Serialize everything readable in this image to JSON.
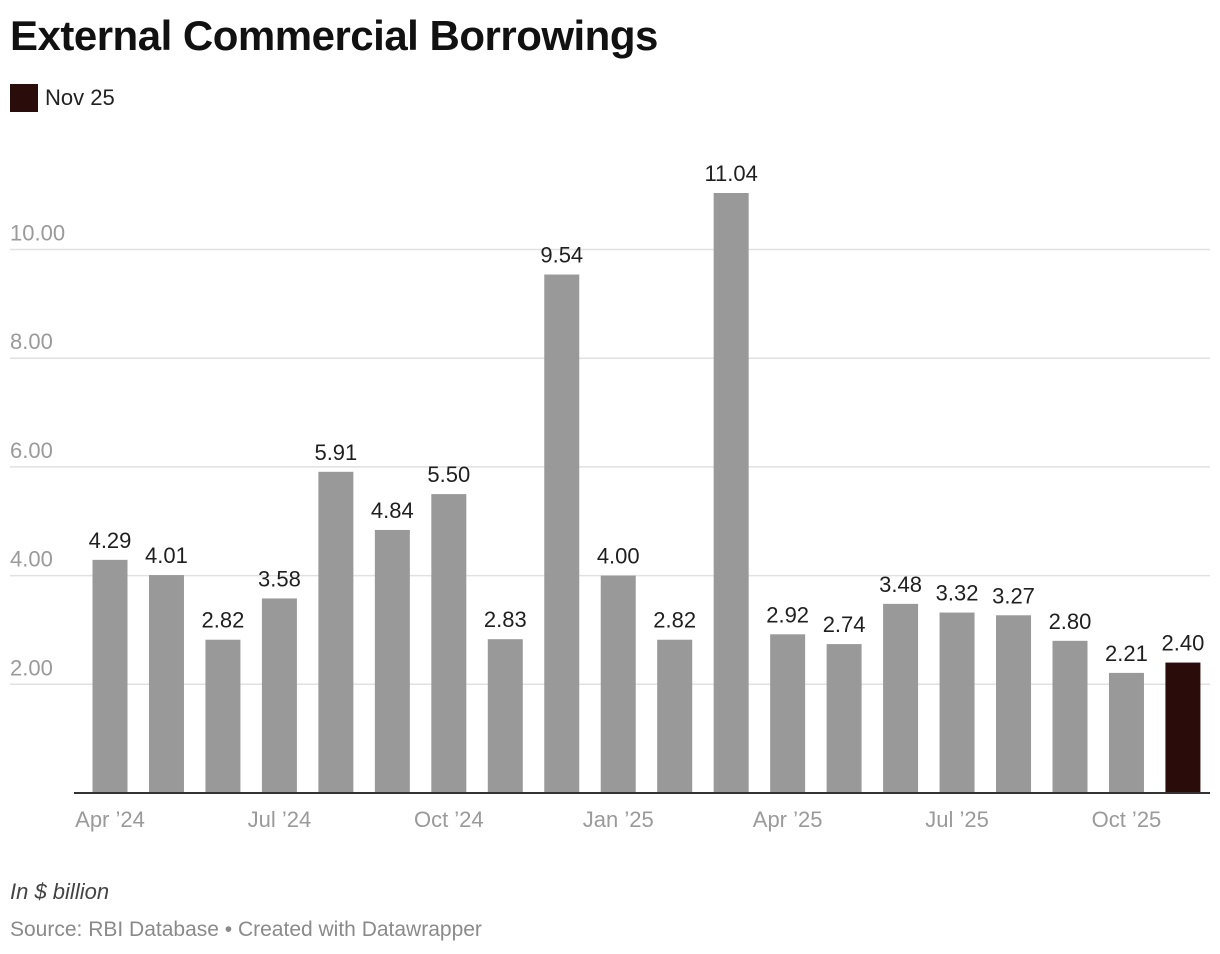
{
  "colors": {
    "bar": "#999999",
    "highlight": "#2a0d0a",
    "grid": "#e1e1e1",
    "tick_text": "#9a9a9a",
    "axis": "#333333",
    "label_text": "#1f1f1f"
  },
  "chart_data": {
    "type": "bar",
    "title": "External Commercial Borrowings",
    "legend": [
      {
        "name": "Nov 25",
        "color": "#2a0d0a"
      }
    ],
    "categories": [
      "Apr 2024",
      "May 2024",
      "Jun 2024",
      "Jul 2024",
      "Aug 2024",
      "Sep 2024",
      "Oct 2024",
      "Nov 2024",
      "Dec 2024",
      "Jan 2025",
      "Feb 2025",
      "Mar 2025",
      "Apr 2025",
      "May 2025",
      "Jun 2025",
      "Jul 2025",
      "Aug 2025",
      "Sep 2025",
      "Oct 2025",
      "Nov 2025"
    ],
    "values": [
      4.29,
      4.01,
      2.82,
      3.58,
      5.91,
      4.84,
      5.5,
      2.83,
      9.54,
      4.0,
      2.82,
      11.04,
      2.92,
      2.74,
      3.48,
      3.32,
      3.27,
      2.8,
      2.21,
      2.4
    ],
    "value_labels": [
      "4.29",
      "4.01",
      "2.82",
      "3.58",
      "5.91",
      "4.84",
      "5.50",
      "2.83",
      "9.54",
      "4.00",
      "2.82",
      "11.04",
      "2.92",
      "2.74",
      "3.48",
      "3.32",
      "3.27",
      "2.80",
      "2.21",
      "2.40"
    ],
    "highlight_index": 19,
    "y_ticks": [
      2,
      4,
      6,
      8,
      10
    ],
    "y_tick_labels": [
      "2.00",
      "4.00",
      "6.00",
      "8.00",
      "10.00"
    ],
    "x_tick_labels": [
      {
        "index": 0,
        "label": "Apr ’24"
      },
      {
        "index": 3,
        "label": "Jul ’24"
      },
      {
        "index": 6,
        "label": "Oct ’24"
      },
      {
        "index": 9,
        "label": "Jan ’25"
      },
      {
        "index": 12,
        "label": "Apr ’25"
      },
      {
        "index": 15,
        "label": "Jul ’25"
      },
      {
        "index": 18,
        "label": "Oct ’25"
      }
    ],
    "ylim": [
      0,
      11.04
    ],
    "xlabel": "",
    "ylabel": "In $ billion",
    "grid": true,
    "legend_position": "top-left"
  },
  "footer": {
    "note": "In $ billion",
    "source": "Source: RBI Database • Created with Datawrapper"
  }
}
